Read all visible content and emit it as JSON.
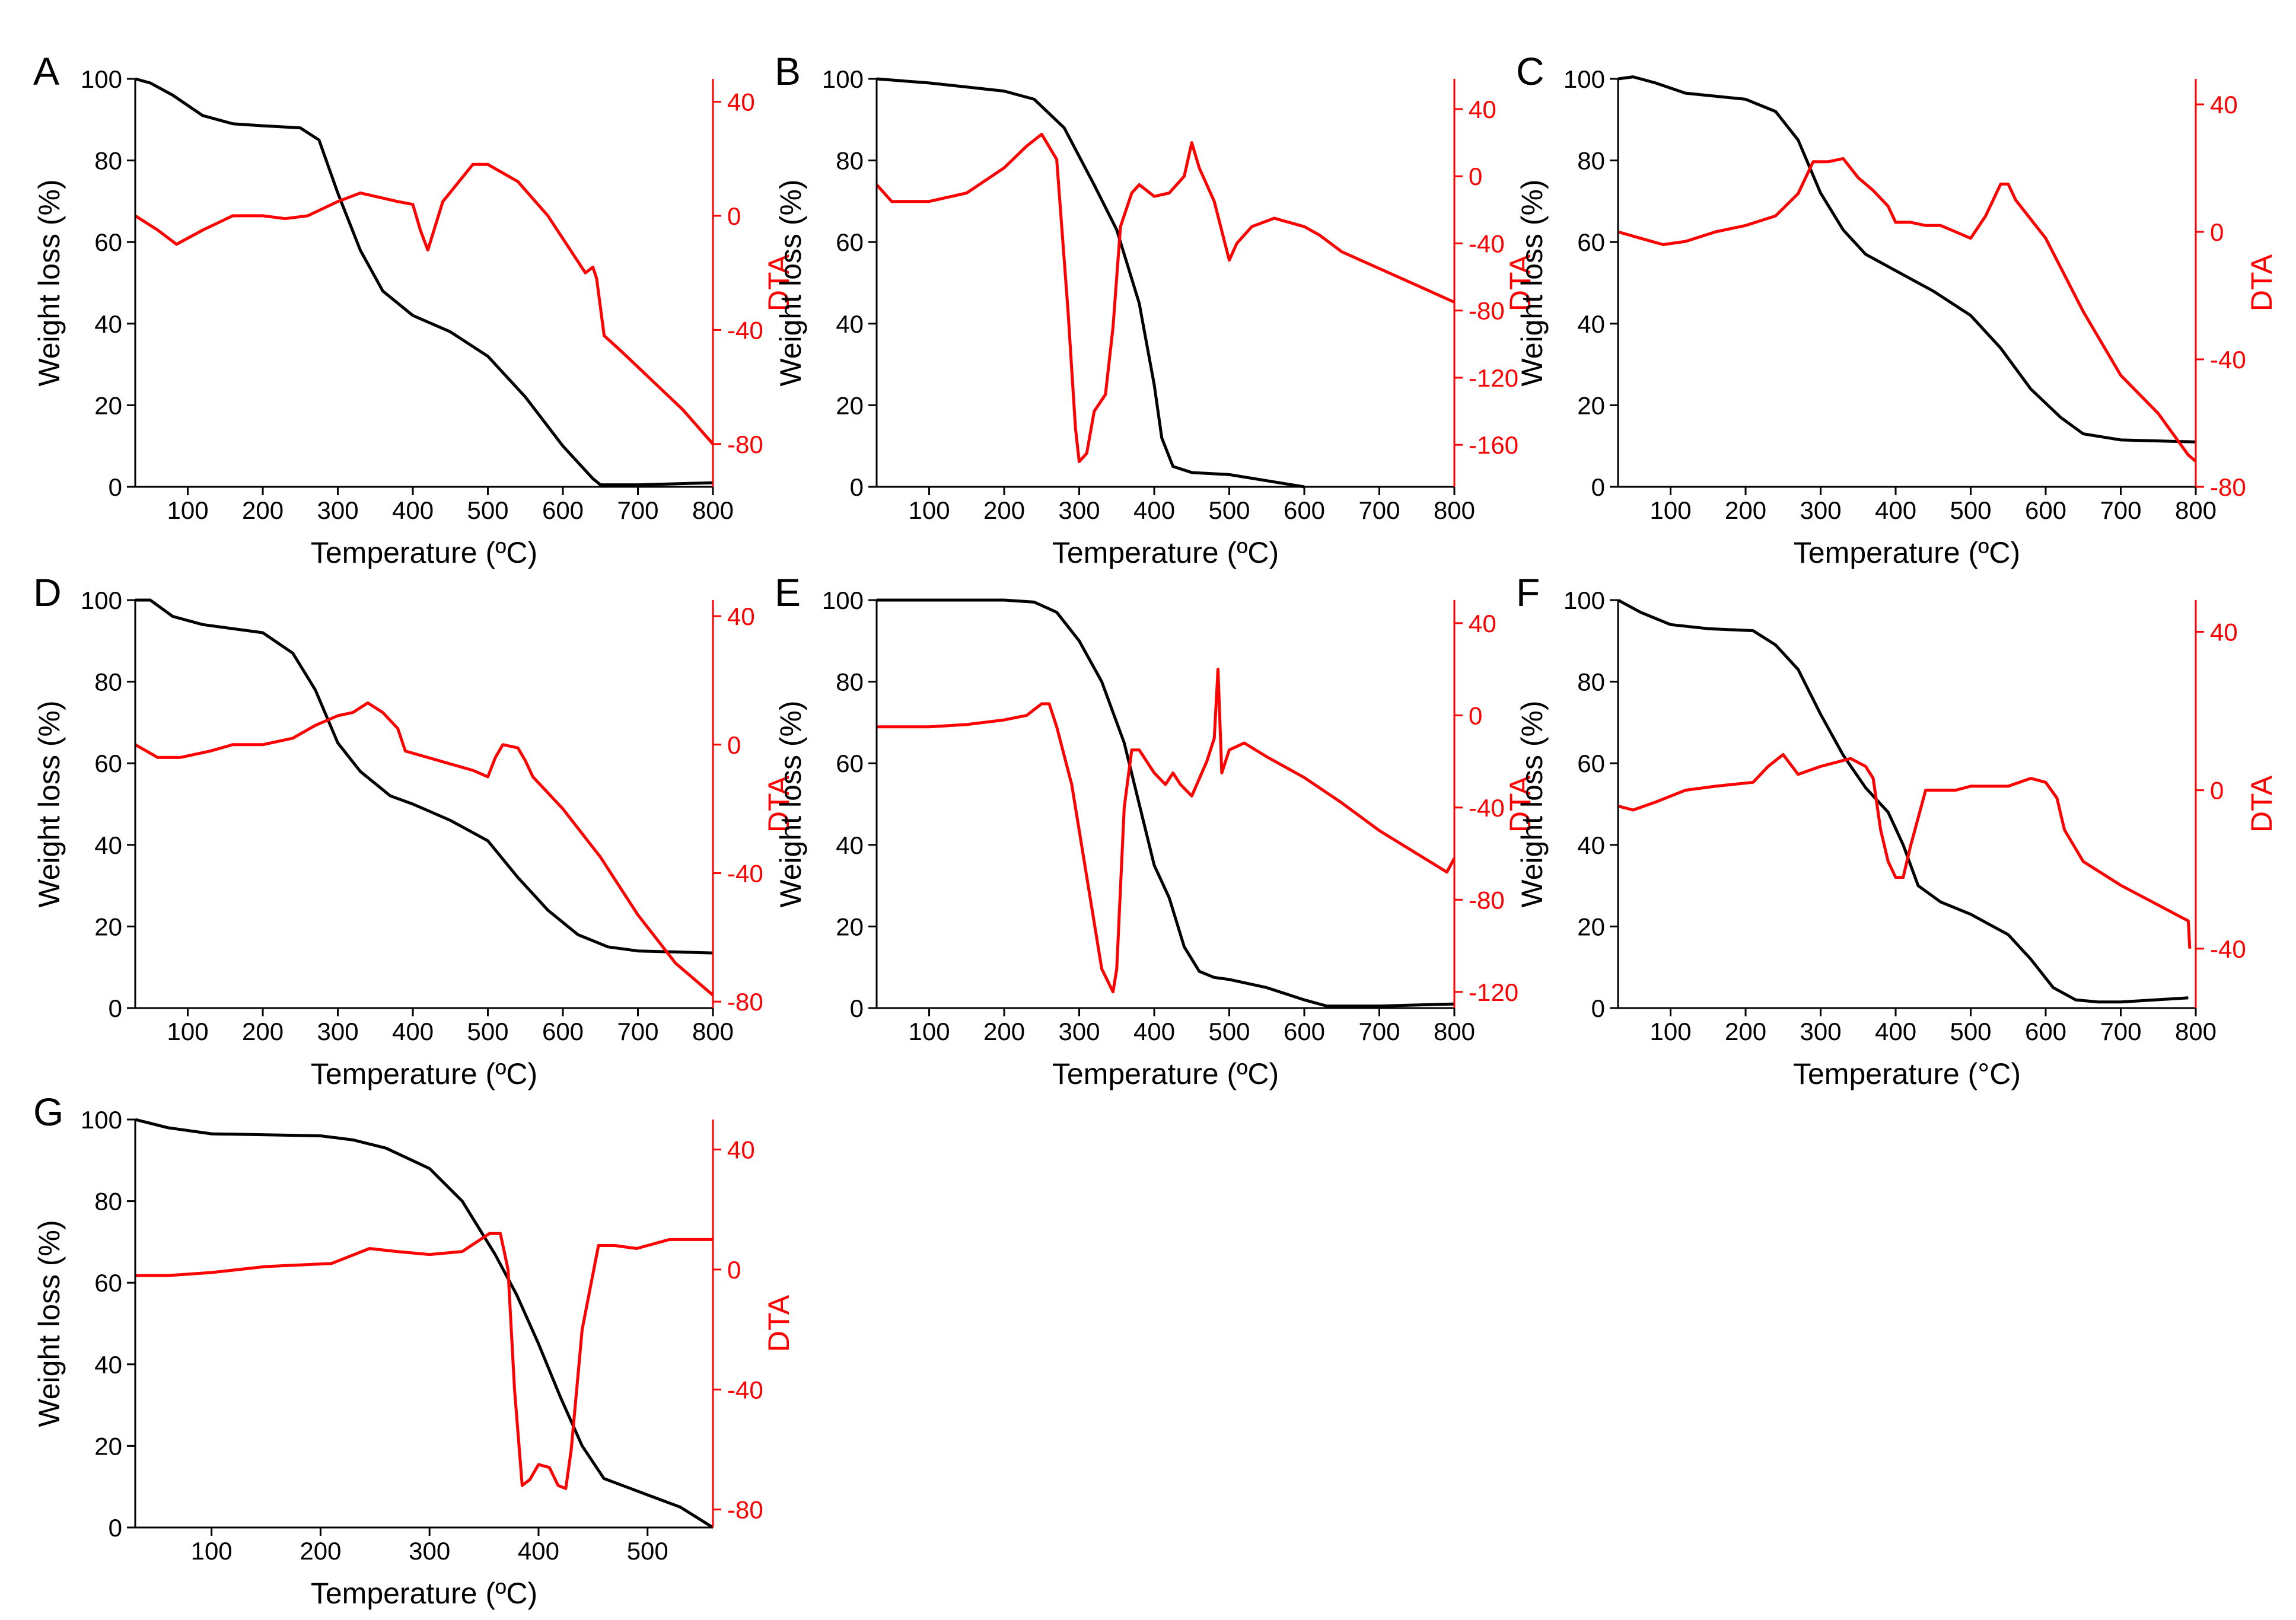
{
  "figure": {
    "colors": {
      "weight": "#000000",
      "dta": "#ff0000",
      "axis": "#000000"
    }
  },
  "chart_data": [
    {
      "type": "line",
      "panel": "A",
      "xlabel": "Temperature (ºC)",
      "ylabel_left": "Weight loss (%)",
      "ylabel_right": "DTA",
      "xlim": [
        30,
        800
      ],
      "xticks": [
        100,
        200,
        300,
        400,
        500,
        600,
        700,
        800
      ],
      "ylim_left": [
        0,
        100
      ],
      "yticks_left": [
        0,
        20,
        40,
        60,
        80,
        100
      ],
      "ylim_right": [
        -95,
        48
      ],
      "yticks_right": [
        -80,
        -40,
        0,
        40
      ],
      "series": [
        {
          "name": "Weight loss",
          "axis": "left",
          "x": [
            30,
            50,
            80,
            120,
            160,
            200,
            250,
            275,
            300,
            330,
            360,
            400,
            450,
            500,
            550,
            600,
            640,
            650,
            700,
            800
          ],
          "y": [
            100,
            99,
            96,
            91,
            89,
            88.5,
            88,
            85,
            72,
            58,
            48,
            42,
            38,
            32,
            22,
            10,
            2,
            0.5,
            0.5,
            1
          ]
        },
        {
          "name": "DTA",
          "axis": "right",
          "x": [
            30,
            60,
            85,
            120,
            160,
            200,
            230,
            260,
            300,
            330,
            380,
            400,
            410,
            420,
            440,
            480,
            500,
            540,
            580,
            630,
            640,
            645,
            655,
            680,
            720,
            760,
            800
          ],
          "y": [
            0,
            -5,
            -10,
            -5,
            0,
            0,
            -1,
            0,
            5,
            8,
            5,
            4,
            -5,
            -12,
            5,
            18,
            18,
            12,
            0,
            -20,
            -18,
            -22,
            -42,
            -48,
            -58,
            -68,
            -80
          ]
        }
      ]
    },
    {
      "type": "line",
      "panel": "B",
      "xlabel": "Temperature (ºC)",
      "ylabel_left": "Weight loss (%)",
      "ylabel_right": "DTA",
      "xlim": [
        30,
        800
      ],
      "xticks": [
        100,
        200,
        300,
        400,
        500,
        600,
        700,
        800
      ],
      "ylim_left": [
        0,
        100
      ],
      "yticks_left": [
        0,
        20,
        40,
        60,
        80,
        100
      ],
      "ylim_right": [
        -185,
        58
      ],
      "yticks_right": [
        -160,
        -120,
        -80,
        -40,
        0,
        40
      ],
      "series": [
        {
          "name": "Weight loss",
          "axis": "left",
          "x": [
            30,
            100,
            200,
            240,
            280,
            320,
            350,
            380,
            400,
            410,
            425,
            450,
            500,
            550,
            600
          ],
          "y": [
            100,
            99,
            97,
            95,
            88,
            74,
            63,
            45,
            25,
            12,
            5,
            3.5,
            3,
            1.5,
            0
          ]
        },
        {
          "name": "DTA",
          "axis": "right",
          "x": [
            30,
            50,
            100,
            150,
            200,
            230,
            250,
            270,
            285,
            295,
            300,
            310,
            320,
            335,
            345,
            355,
            370,
            380,
            400,
            420,
            440,
            450,
            460,
            480,
            500,
            510,
            530,
            560,
            600,
            620,
            650,
            700,
            750,
            800
          ],
          "y": [
            -5,
            -15,
            -15,
            -10,
            5,
            18,
            25,
            10,
            -80,
            -150,
            -170,
            -165,
            -140,
            -130,
            -90,
            -30,
            -10,
            -5,
            -12,
            -10,
            0,
            20,
            5,
            -15,
            -50,
            -40,
            -30,
            -25,
            -30,
            -35,
            -45,
            -55,
            -65,
            -75
          ]
        }
      ]
    },
    {
      "type": "line",
      "panel": "C",
      "xlabel": "Temperature (ºC)",
      "ylabel_left": "Weight loss (%)",
      "ylabel_right": "DTA",
      "xlim": [
        30,
        800
      ],
      "xticks": [
        100,
        200,
        300,
        400,
        500,
        600,
        700,
        800
      ],
      "ylim_left": [
        0,
        100
      ],
      "yticks_left": [
        0,
        20,
        40,
        60,
        80,
        100
      ],
      "ylim_right": [
        -80,
        48
      ],
      "yticks_right": [
        -80,
        -40,
        0,
        40
      ],
      "series": [
        {
          "name": "Weight loss",
          "axis": "left",
          "x": [
            30,
            50,
            80,
            120,
            200,
            240,
            270,
            300,
            330,
            360,
            400,
            450,
            500,
            540,
            580,
            620,
            650,
            700,
            800
          ],
          "y": [
            100,
            100.5,
            99,
            96.5,
            95,
            92,
            85,
            72,
            63,
            57,
            53,
            48,
            42,
            34,
            24,
            17,
            13,
            11.5,
            11
          ]
        },
        {
          "name": "DTA",
          "axis": "right",
          "x": [
            30,
            60,
            90,
            120,
            160,
            200,
            240,
            270,
            290,
            310,
            330,
            350,
            370,
            390,
            400,
            420,
            440,
            460,
            480,
            500,
            520,
            540,
            550,
            560,
            600,
            650,
            700,
            750,
            790,
            800
          ],
          "y": [
            0,
            -2,
            -4,
            -3,
            0,
            2,
            5,
            12,
            22,
            22,
            23,
            17,
            13,
            8,
            3,
            3,
            2,
            2,
            0,
            -2,
            5,
            15,
            15,
            10,
            -2,
            -25,
            -45,
            -57,
            -70,
            -72
          ]
        }
      ]
    },
    {
      "type": "line",
      "panel": "D",
      "xlabel": "Temperature (ºC)",
      "ylabel_left": "Weight loss (%)",
      "ylabel_right": "DTA",
      "xlim": [
        30,
        800
      ],
      "xticks": [
        100,
        200,
        300,
        400,
        500,
        600,
        700,
        800
      ],
      "ylim_left": [
        0,
        100
      ],
      "yticks_left": [
        0,
        20,
        40,
        60,
        80,
        100
      ],
      "ylim_right": [
        -82,
        45
      ],
      "yticks_right": [
        -80,
        -40,
        0,
        40
      ],
      "series": [
        {
          "name": "Weight loss",
          "axis": "left",
          "x": [
            30,
            50,
            80,
            120,
            200,
            240,
            270,
            300,
            330,
            370,
            400,
            450,
            500,
            540,
            580,
            620,
            660,
            700,
            800
          ],
          "y": [
            100,
            100,
            96,
            94,
            92,
            87,
            78,
            65,
            58,
            52,
            50,
            46,
            41,
            32,
            24,
            18,
            15,
            14,
            13.5
          ]
        },
        {
          "name": "DTA",
          "axis": "right",
          "x": [
            30,
            60,
            90,
            130,
            160,
            200,
            240,
            270,
            300,
            320,
            340,
            360,
            380,
            390,
            420,
            450,
            480,
            500,
            510,
            520,
            540,
            550,
            560,
            600,
            650,
            700,
            750,
            800
          ],
          "y": [
            0,
            -4,
            -4,
            -2,
            0,
            0,
            2,
            6,
            9,
            10,
            13,
            10,
            5,
            -2,
            -4,
            -6,
            -8,
            -10,
            -4,
            0,
            -1,
            -5,
            -10,
            -20,
            -35,
            -53,
            -68,
            -78
          ]
        }
      ]
    },
    {
      "type": "line",
      "panel": "E",
      "xlabel": "Temperature (ºC)",
      "ylabel_left": "Weight loss (%)",
      "ylabel_right": "DTA",
      "xlim": [
        30,
        800
      ],
      "xticks": [
        100,
        200,
        300,
        400,
        500,
        600,
        700,
        800
      ],
      "ylim_left": [
        0,
        100
      ],
      "yticks_left": [
        0,
        20,
        40,
        60,
        80,
        100
      ],
      "ylim_right": [
        -127,
        50
      ],
      "yticks_right": [
        -120,
        -80,
        -40,
        0,
        40
      ],
      "series": [
        {
          "name": "Weight loss",
          "axis": "left",
          "x": [
            30,
            100,
            200,
            240,
            270,
            300,
            330,
            360,
            380,
            400,
            420,
            440,
            460,
            480,
            500,
            550,
            600,
            630,
            700,
            800
          ],
          "y": [
            100,
            100,
            100,
            99.5,
            97,
            90,
            80,
            65,
            50,
            35,
            27,
            15,
            9,
            7.5,
            7,
            5,
            2,
            0.5,
            0.5,
            1
          ]
        },
        {
          "name": "DTA",
          "axis": "right",
          "x": [
            30,
            100,
            150,
            200,
            230,
            250,
            260,
            270,
            290,
            310,
            330,
            345,
            350,
            360,
            370,
            380,
            400,
            415,
            425,
            435,
            450,
            470,
            480,
            485,
            490,
            500,
            520,
            550,
            600,
            650,
            700,
            750,
            790,
            800
          ],
          "y": [
            -5,
            -5,
            -4,
            -2,
            0,
            5,
            5,
            -5,
            -30,
            -70,
            -110,
            -120,
            -110,
            -40,
            -15,
            -15,
            -25,
            -30,
            -25,
            -30,
            -35,
            -20,
            -10,
            20,
            -25,
            -15,
            -12,
            -18,
            -27,
            -38,
            -50,
            -60,
            -68,
            -62
          ]
        }
      ]
    },
    {
      "type": "line",
      "panel": "F",
      "xlabel": "Temperature (°C)",
      "ylabel_left": "Weight loss (%)",
      "ylabel_right": "DTA",
      "xlim": [
        30,
        800
      ],
      "xticks": [
        100,
        200,
        300,
        400,
        500,
        600,
        700,
        800
      ],
      "ylim_left": [
        0,
        100
      ],
      "yticks_left": [
        0,
        20,
        40,
        60,
        80,
        100
      ],
      "ylim_right": [
        -55,
        48
      ],
      "yticks_right": [
        -40,
        0,
        40
      ],
      "series": [
        {
          "name": "Weight loss",
          "axis": "left",
          "x": [
            30,
            60,
            100,
            150,
            210,
            240,
            270,
            300,
            330,
            360,
            390,
            410,
            430,
            460,
            500,
            550,
            580,
            610,
            640,
            670,
            700,
            790
          ],
          "y": [
            100,
            97,
            94,
            93,
            92.5,
            89,
            83,
            72,
            62,
            54,
            48,
            40,
            30,
            26,
            23,
            18,
            12,
            5,
            2,
            1.5,
            1.5,
            2.5
          ]
        },
        {
          "name": "DTA",
          "axis": "right",
          "x": [
            30,
            50,
            80,
            120,
            160,
            210,
            230,
            250,
            270,
            300,
            340,
            360,
            370,
            380,
            390,
            400,
            410,
            420,
            440,
            460,
            480,
            500,
            520,
            550,
            580,
            600,
            615,
            625,
            650,
            700,
            750,
            780,
            790,
            792
          ],
          "y": [
            -4,
            -5,
            -3,
            0,
            1,
            2,
            6,
            9,
            4,
            6,
            8,
            6,
            3,
            -10,
            -18,
            -22,
            -22,
            -14,
            0,
            0,
            0,
            1,
            1,
            1,
            3,
            2,
            -2,
            -10,
            -18,
            -24,
            -29,
            -32,
            -33,
            -40
          ]
        }
      ]
    },
    {
      "type": "line",
      "panel": "G",
      "xlabel": "Temperature (ºC)",
      "ylabel_left": "Weight loss (%)",
      "ylabel_right": "DTA",
      "xlim": [
        30,
        560
      ],
      "xticks": [
        100,
        200,
        300,
        400,
        500
      ],
      "ylim_left": [
        0,
        100
      ],
      "yticks_left": [
        0,
        20,
        40,
        60,
        80,
        100
      ],
      "ylim_right": [
        -86,
        50
      ],
      "yticks_right": [
        -80,
        -40,
        0,
        40
      ],
      "series": [
        {
          "name": "Weight loss",
          "axis": "left",
          "x": [
            30,
            60,
            100,
            200,
            230,
            260,
            300,
            330,
            360,
            380,
            400,
            420,
            440,
            460,
            480,
            500,
            530,
            560
          ],
          "y": [
            100,
            98,
            96.5,
            96,
            95,
            93,
            88,
            80,
            67,
            57,
            45,
            32,
            20,
            12,
            10,
            8,
            5,
            0
          ]
        },
        {
          "name": "DTA",
          "axis": "right",
          "x": [
            30,
            60,
            100,
            150,
            210,
            245,
            270,
            300,
            330,
            355,
            365,
            372,
            378,
            385,
            392,
            400,
            410,
            418,
            425,
            430,
            440,
            455,
            470,
            490,
            520,
            560
          ],
          "y": [
            -2,
            -2,
            -1,
            1,
            2,
            7,
            6,
            5,
            6,
            12,
            12,
            0,
            -40,
            -72,
            -70,
            -65,
            -66,
            -72,
            -73,
            -60,
            -20,
            8,
            8,
            7,
            10,
            10
          ]
        }
      ]
    }
  ]
}
